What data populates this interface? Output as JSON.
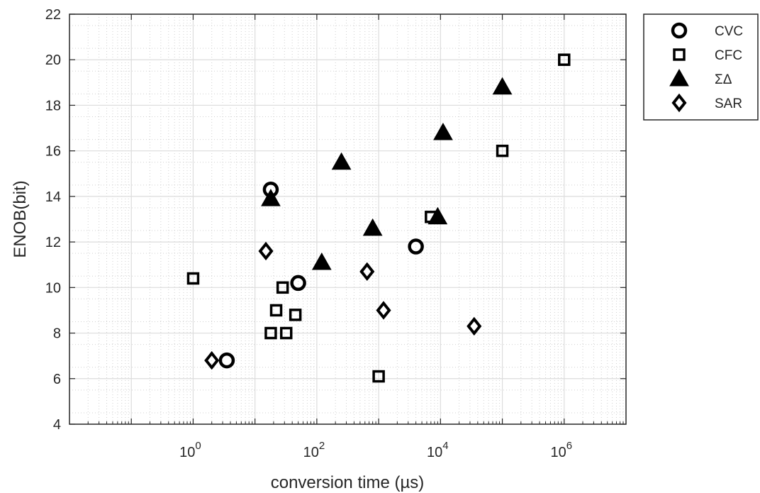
{
  "chart_data": {
    "type": "scatter",
    "xlabel": "conversion time (µs)",
    "ylabel": "ENOB(bit)",
    "x_scale": "log",
    "xlim": [
      0.01,
      10000000
    ],
    "ylim": [
      4,
      22
    ],
    "x_major_ticks": [
      1,
      100,
      10000,
      1000000
    ],
    "x_tick_labels": [
      {
        "base": "10",
        "exp": "0"
      },
      {
        "base": "10",
        "exp": "2"
      },
      {
        "base": "10",
        "exp": "4"
      },
      {
        "base": "10",
        "exp": "6"
      }
    ],
    "y_ticks": [
      4,
      6,
      8,
      10,
      12,
      14,
      16,
      18,
      20,
      22
    ],
    "grid": true,
    "minor_grid": true,
    "legend_position": "outside-top-right",
    "series": [
      {
        "name": "CVC",
        "marker": "circle",
        "points": [
          [
            3.5,
            6.8
          ],
          [
            18,
            14.3
          ],
          [
            50,
            10.2
          ],
          [
            4000,
            11.8
          ]
        ]
      },
      {
        "name": "CFC",
        "marker": "square",
        "points": [
          [
            1,
            10.4
          ],
          [
            18,
            8
          ],
          [
            22,
            9
          ],
          [
            28,
            10
          ],
          [
            32,
            8
          ],
          [
            45,
            8.8
          ],
          [
            1000,
            6.1
          ],
          [
            7000,
            13.1
          ],
          [
            100000,
            16
          ],
          [
            1000000,
            20
          ]
        ]
      },
      {
        "name": "ΣΔ",
        "marker": "triangle",
        "points": [
          [
            18,
            13.9
          ],
          [
            120,
            11.1
          ],
          [
            250,
            15.5
          ],
          [
            800,
            12.6
          ],
          [
            9000,
            13.1
          ],
          [
            11000,
            16.8
          ],
          [
            100000,
            18.8
          ]
        ]
      },
      {
        "name": "SAR",
        "marker": "diamond",
        "points": [
          [
            2,
            6.8
          ],
          [
            15,
            11.6
          ],
          [
            650,
            10.7
          ],
          [
            1200,
            9
          ],
          [
            35000,
            8.3
          ]
        ]
      }
    ]
  }
}
